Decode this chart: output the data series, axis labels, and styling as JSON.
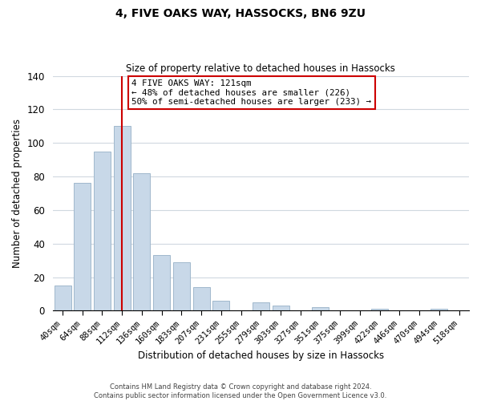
{
  "title": "4, FIVE OAKS WAY, HASSOCKS, BN6 9ZU",
  "subtitle": "Size of property relative to detached houses in Hassocks",
  "xlabel": "Distribution of detached houses by size in Hassocks",
  "ylabel": "Number of detached properties",
  "bar_labels": [
    "40sqm",
    "64sqm",
    "88sqm",
    "112sqm",
    "136sqm",
    "160sqm",
    "183sqm",
    "207sqm",
    "231sqm",
    "255sqm",
    "279sqm",
    "303sqm",
    "327sqm",
    "351sqm",
    "375sqm",
    "399sqm",
    "422sqm",
    "446sqm",
    "470sqm",
    "494sqm",
    "518sqm"
  ],
  "bar_values": [
    15,
    76,
    95,
    110,
    82,
    33,
    29,
    14,
    6,
    0,
    5,
    3,
    0,
    2,
    0,
    0,
    1,
    0,
    0,
    1,
    0
  ],
  "bar_color": "#c8d8e8",
  "bar_edge_color": "#a0b8cc",
  "vline_x": 3,
  "vline_color": "#cc0000",
  "ylim": [
    0,
    140
  ],
  "yticks": [
    0,
    20,
    40,
    60,
    80,
    100,
    120,
    140
  ],
  "annotation_title": "4 FIVE OAKS WAY: 121sqm",
  "annotation_line1": "← 48% of detached houses are smaller (226)",
  "annotation_line2": "50% of semi-detached houses are larger (233) →",
  "annotation_box_color": "#ffffff",
  "annotation_box_edge": "#cc0000",
  "footer1": "Contains HM Land Registry data © Crown copyright and database right 2024.",
  "footer2": "Contains public sector information licensed under the Open Government Licence v3.0.",
  "background_color": "#ffffff",
  "grid_color": "#d0d8e0"
}
